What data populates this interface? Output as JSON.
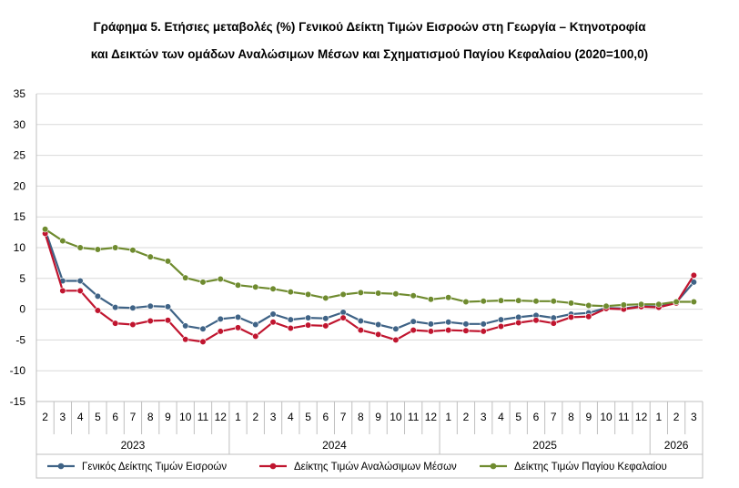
{
  "title_line1": "Γράφημα 5. Ετήσιες μεταβολές (%) Γενικού Δείκτη Τιμών Εισροών στη Γεωργία – Κτηνοτροφία",
  "title_line2": "και Δεικτών των ομάδων Αναλώσιμων Μέσων και Σχηματισμού Παγίου Κεφαλαίου (2020=100,0)",
  "chart_data": {
    "type": "line",
    "ylim": [
      -15,
      35
    ],
    "yticks": [
      35,
      30,
      25,
      20,
      15,
      10,
      5,
      0,
      -5,
      -10,
      -15
    ],
    "grid": true,
    "legend_position": "bottom",
    "x_months": [
      "2",
      "3",
      "4",
      "5",
      "6",
      "7",
      "8",
      "9",
      "10",
      "11",
      "12",
      "1",
      "2",
      "3",
      "4",
      "5",
      "6",
      "7",
      "8",
      "9",
      "10",
      "11",
      "12",
      "1",
      "2",
      "3",
      "4",
      "5",
      "6",
      "7",
      "8",
      "9",
      "10",
      "11",
      "12",
      "1",
      "2",
      "3"
    ],
    "x_years": [
      {
        "label": "2023",
        "count": 11
      },
      {
        "label": "2024",
        "count": 12
      },
      {
        "label": "2025",
        "count": 12
      },
      {
        "label": "2026",
        "count": 3
      }
    ],
    "series": [
      {
        "name": "Γενικός Δείκτης Τιμών Εισροών",
        "color": "#3f6386",
        "values": [
          12.9,
          4.6,
          4.6,
          2.1,
          0.3,
          0.2,
          0.5,
          0.4,
          -2.7,
          -3.2,
          -1.6,
          -1.3,
          -2.5,
          -0.8,
          -1.7,
          -1.4,
          -1.5,
          -0.5,
          -1.9,
          -2.5,
          -3.2,
          -2.0,
          -2.4,
          -2.1,
          -2.4,
          -2.4,
          -1.7,
          -1.3,
          -1.0,
          -1.4,
          -0.8,
          -0.6,
          0.2,
          0.1,
          0.5,
          0.4,
          1.1,
          4.4
        ]
      },
      {
        "name": "Δείκτης Τιμών Αναλώσιμων Μέσων",
        "color": "#c0152f",
        "values": [
          12.3,
          3.0,
          3.0,
          -0.2,
          -2.3,
          -2.5,
          -1.9,
          -1.8,
          -4.9,
          -5.3,
          -3.6,
          -3.0,
          -4.4,
          -2.1,
          -3.1,
          -2.6,
          -2.7,
          -1.4,
          -3.4,
          -4.1,
          -5.0,
          -3.4,
          -3.6,
          -3.4,
          -3.5,
          -3.6,
          -2.8,
          -2.2,
          -1.8,
          -2.3,
          -1.3,
          -1.2,
          0.1,
          0.0,
          0.4,
          0.3,
          1.0,
          5.5
        ]
      },
      {
        "name": "Δείκτης Τιμών Παγίου Κεφαλαίου",
        "color": "#6f8b2f",
        "values": [
          13.0,
          11.1,
          10.0,
          9.7,
          10.0,
          9.6,
          8.5,
          7.8,
          5.1,
          4.4,
          4.9,
          3.9,
          3.6,
          3.3,
          2.8,
          2.4,
          1.8,
          2.4,
          2.7,
          2.6,
          2.5,
          2.2,
          1.6,
          1.9,
          1.2,
          1.3,
          1.4,
          1.4,
          1.3,
          1.3,
          1.0,
          0.6,
          0.5,
          0.7,
          0.8,
          0.8,
          1.2,
          1.2
        ]
      }
    ]
  }
}
